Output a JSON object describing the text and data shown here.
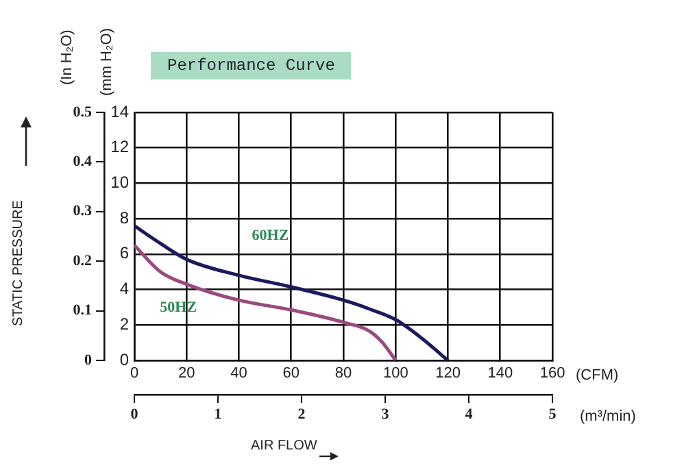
{
  "chart_data": {
    "type": "line",
    "title": "Performance Curve",
    "xlabel": "(CFM)",
    "x2label": "(m³/min)",
    "ylabel": "(mm H₂O)",
    "y2label": "(In H₂O)",
    "annotations": [
      "STATIC PRESSURE",
      "AIR FLOW"
    ],
    "xlim": [
      0,
      160
    ],
    "xticks": [
      0,
      20,
      40,
      60,
      80,
      100,
      120,
      140,
      160
    ],
    "x2lim": [
      0,
      5
    ],
    "x2ticks": [
      0,
      1,
      2,
      3,
      4,
      5
    ],
    "ylim": [
      0,
      14
    ],
    "yticks": [
      0,
      2,
      4,
      6,
      8,
      10,
      12,
      14
    ],
    "y2lim": [
      0,
      0.5
    ],
    "y2ticks": [
      0,
      0.1,
      0.2,
      0.3,
      0.4,
      0.5
    ],
    "grid": true,
    "series": [
      {
        "name": "60HZ",
        "color": "#1c1a5e",
        "x": [
          0,
          10,
          20,
          40,
          60,
          80,
          90,
          100,
          110,
          120
        ],
        "values": [
          7.6,
          6.6,
          5.7,
          4.8,
          4.15,
          3.4,
          2.9,
          2.3,
          1.25,
          0
        ]
      },
      {
        "name": "50HZ",
        "color": "#9b4a7e",
        "x": [
          0,
          10,
          20,
          40,
          60,
          80,
          90,
          95,
          100
        ],
        "values": [
          6.5,
          5.0,
          4.3,
          3.4,
          2.85,
          2.15,
          1.65,
          1.0,
          0
        ]
      }
    ]
  }
}
